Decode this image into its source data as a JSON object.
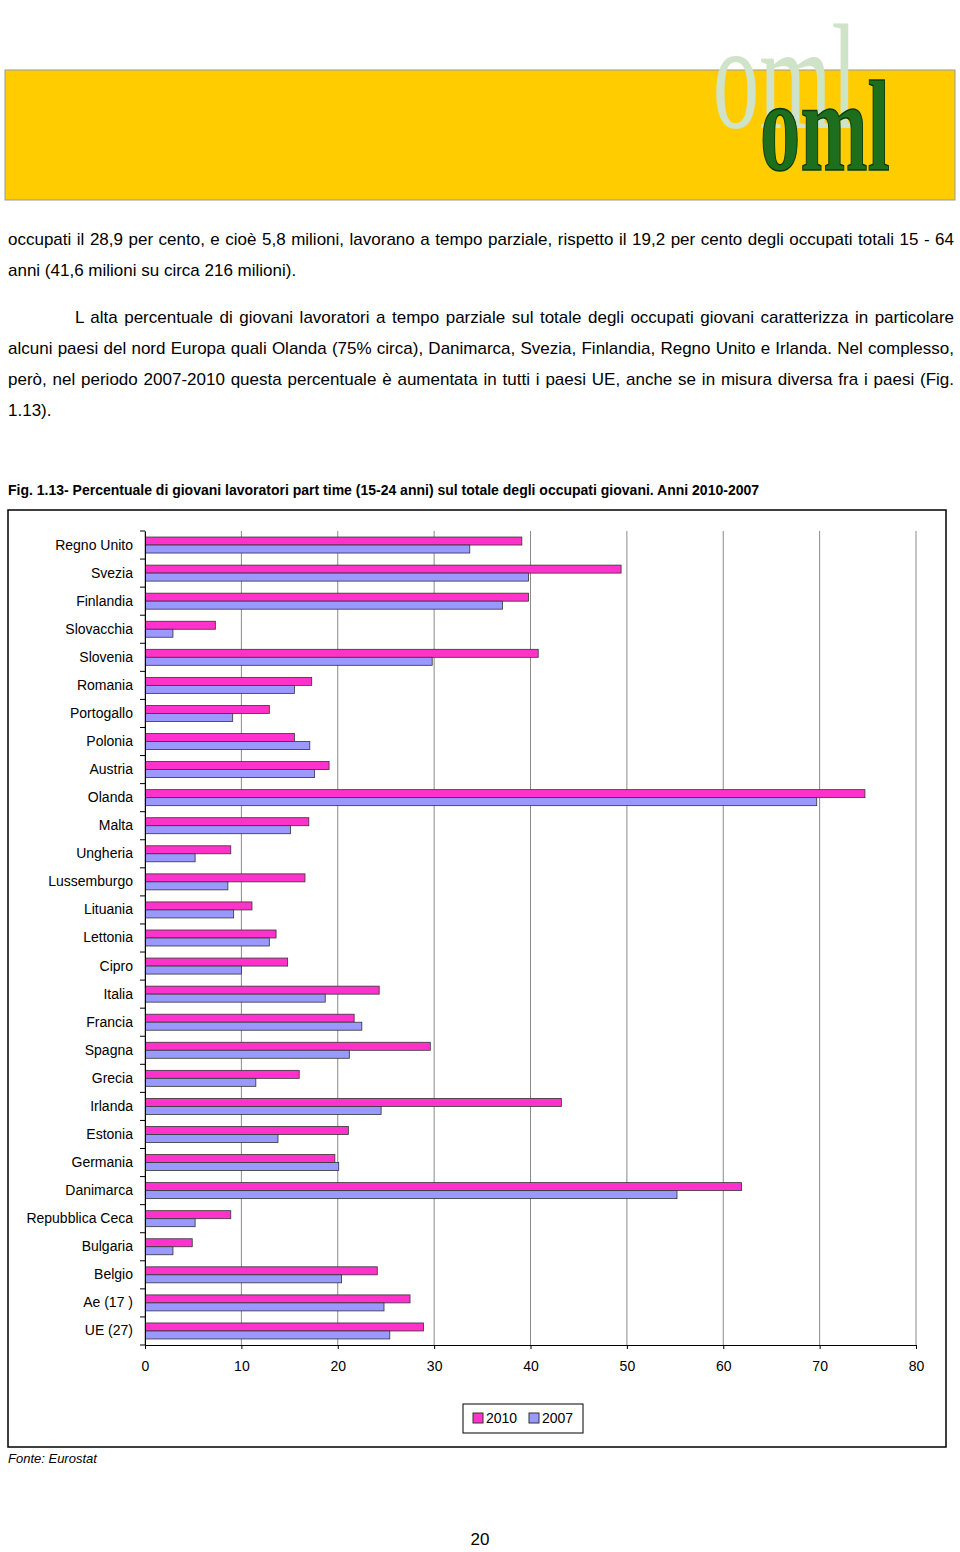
{
  "header": {
    "logo": "oml"
  },
  "paragraphs": [
    "occupati il 28,9 per cento, e cioè 5,8 milioni, lavorano a tempo parziale, rispetto il 19,2 per cento degli occupati totali 15 - 64 anni (41,6 milioni su circa 216 milioni).",
    "L alta percentuale di giovani lavoratori a tempo parziale sul totale degli occupati giovani caratterizza in particolare alcuni paesi del nord Europa quali Olanda (75% circa), Danimarca, Svezia, Finlandia, Regno Unito e Irlanda. Nel complesso, però, nel periodo 2007-2010 questa percentuale è aumentata in tutti i paesi UE, anche se in misura diversa fra i paesi (Fig. 1.13)."
  ],
  "caption": "Fig. 1.13- Percentuale di giovani lavoratori part time (15-24 anni) sul totale degli occupati giovani. Anni 2010-2007",
  "chart_data": {
    "type": "bar",
    "orientation": "horizontal",
    "categories": [
      "Regno Unito",
      "Svezia",
      "Finlandia",
      "Slovacchia",
      "Slovenia",
      "Romania",
      "Portogallo",
      "Polonia",
      "Austria",
      "Olanda",
      "Malta",
      "Ungheria",
      "Lussemburgo",
      "Lituania",
      "Lettonia",
      "Cipro",
      "Italia",
      "Francia",
      "Spagna",
      "Grecia",
      "Irlanda",
      "Estonia",
      "Germania",
      "Danimarca",
      "Repubblica Ceca",
      "Bulgaria",
      "Belgio",
      "Ae (17 )",
      "UE (27)"
    ],
    "series": [
      {
        "name": "2010",
        "color": "#ff33cc",
        "values": [
          39.1,
          49.4,
          39.8,
          7.3,
          40.8,
          17.3,
          12.9,
          15.5,
          19.1,
          74.7,
          17.0,
          8.9,
          16.6,
          11.1,
          13.6,
          14.8,
          24.3,
          21.7,
          29.6,
          16.0,
          43.2,
          21.1,
          19.7,
          61.9,
          8.9,
          4.9,
          24.1,
          27.5,
          28.9
        ]
      },
      {
        "name": "2007",
        "color": "#9999ff",
        "values": [
          33.7,
          39.8,
          37.1,
          2.9,
          29.8,
          15.5,
          9.1,
          17.1,
          17.6,
          69.7,
          15.1,
          5.2,
          8.6,
          9.2,
          12.9,
          10.0,
          18.7,
          22.5,
          21.2,
          11.5,
          24.5,
          13.8,
          20.1,
          55.2,
          5.2,
          2.9,
          20.4,
          24.8,
          25.4
        ]
      }
    ],
    "xlim": [
      0,
      80
    ],
    "xticks": [
      0,
      10,
      20,
      30,
      40,
      50,
      60,
      70,
      80
    ],
    "grid": true,
    "legend": "bottom"
  },
  "source": "Fonte: Eurostat",
  "page_number": "20"
}
